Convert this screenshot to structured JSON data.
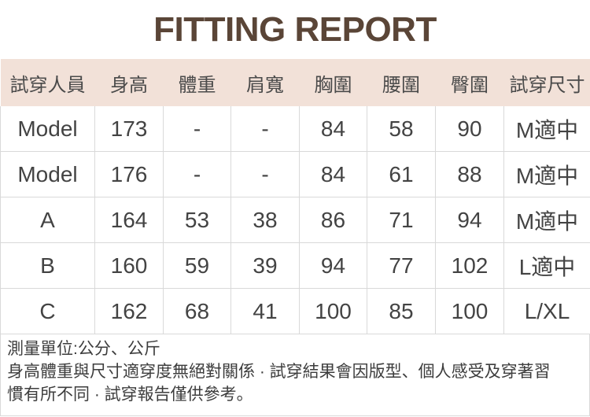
{
  "title": "FITTING REPORT",
  "table": {
    "headers": [
      "試穿人員",
      "身高",
      "體重",
      "肩寬",
      "胸圍",
      "腰圍",
      "臀圍",
      "試穿尺寸"
    ],
    "rows": [
      [
        "Model",
        "173",
        "-",
        "-",
        "84",
        "58",
        "90",
        "M適中"
      ],
      [
        "Model",
        "176",
        "-",
        "-",
        "84",
        "61",
        "88",
        "M適中"
      ],
      [
        "A",
        "164",
        "53",
        "38",
        "86",
        "71",
        "94",
        "M適中"
      ],
      [
        "B",
        "160",
        "59",
        "39",
        "94",
        "77",
        "102",
        "L適中"
      ],
      [
        "C",
        "162",
        "68",
        "41",
        "100",
        "85",
        "100",
        "L/XL"
      ]
    ]
  },
  "footer": {
    "line1": "測量單位:公分、公斤",
    "line2": "身高體重與尺寸適穿度無絕對關係 · 試穿結果會因版型、個人感受及穿著習",
    "line3": "慣有所不同 · 試穿報告僅供參考。"
  },
  "colors": {
    "title_color": "#5a4537",
    "header_bg": "#f2e1d8",
    "header_text": "#4a4a4a",
    "body_text": "#434343",
    "border_color": "#d9d9d9",
    "footer_text": "#3d3d3d"
  }
}
